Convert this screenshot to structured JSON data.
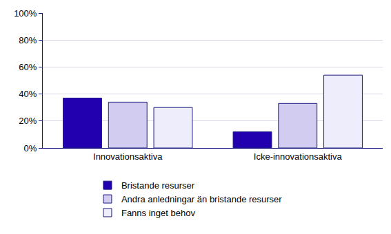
{
  "chart_data": {
    "type": "bar",
    "categories": [
      "Innovationsaktiva",
      "Icke-innovationsaktiva"
    ],
    "series": [
      {
        "name": "Bristande resurser",
        "color": "#2200b0",
        "values": [
          37,
          12
        ]
      },
      {
        "name": "Andra anledningar än bristande resurser",
        "color": "#d2ccf0",
        "values": [
          34,
          33
        ]
      },
      {
        "name": "Fanns inget behov",
        "color": "#eeedfb",
        "values": [
          30,
          54
        ]
      }
    ],
    "ylim": [
      0,
      100
    ],
    "yticks": [
      {
        "value": 0,
        "label": "0%"
      },
      {
        "value": 20,
        "label": "20%"
      },
      {
        "value": 40,
        "label": "40%"
      },
      {
        "value": 60,
        "label": "60%"
      },
      {
        "value": 80,
        "label": "80%"
      },
      {
        "value": 100,
        "label": "100%"
      }
    ],
    "grid": true,
    "legend": "bottom"
  }
}
